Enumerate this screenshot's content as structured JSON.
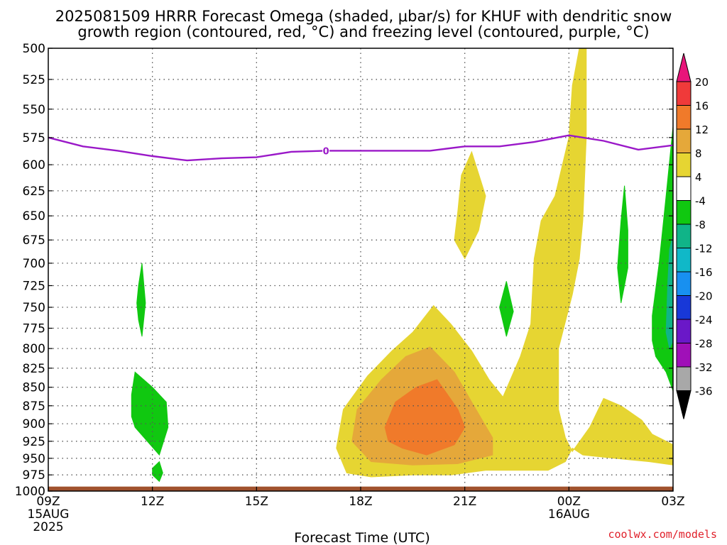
{
  "title_line1": "2025081509 HRRR Forecast Omega (shaded, μbar/s) for KHUF with dendritic snow",
  "title_line2": "growth region (contoured, red, °C) and freezing level (contoured, purple, °C)",
  "x_axis_title": "Forecast Time (UTC)",
  "credit": "coolwx.com/models",
  "chart_data": {
    "type": "heatmap",
    "y_axis": {
      "label": "",
      "range": [
        500,
        1000
      ],
      "inverted": true,
      "ticks": [
        500,
        525,
        550,
        575,
        600,
        625,
        650,
        675,
        700,
        725,
        750,
        775,
        800,
        825,
        850,
        875,
        900,
        925,
        950,
        975,
        1000
      ]
    },
    "x_axis": {
      "range_hours": [
        0,
        18
      ],
      "ticks": [
        {
          "hour": 0,
          "label": "09Z",
          "sub1": "15AUG",
          "sub2": "2025"
        },
        {
          "hour": 3,
          "label": "12Z",
          "sub1": "",
          "sub2": ""
        },
        {
          "hour": 6,
          "label": "15Z",
          "sub1": "",
          "sub2": ""
        },
        {
          "hour": 9,
          "label": "18Z",
          "sub1": "",
          "sub2": ""
        },
        {
          "hour": 12,
          "label": "21Z",
          "sub1": "",
          "sub2": ""
        },
        {
          "hour": 15,
          "label": "00Z",
          "sub1": "16AUG",
          "sub2": ""
        },
        {
          "hour": 18,
          "label": "03Z",
          "sub1": "",
          "sub2": ""
        }
      ]
    },
    "grid": "dotted",
    "colorbar": {
      "labels": [
        "20",
        "16",
        "12",
        "8",
        "4",
        "-4",
        "-8",
        "-12",
        "-16",
        "-20",
        "-24",
        "-28",
        "-32",
        "-36"
      ],
      "colors": [
        "#e8157a",
        "#f03a3a",
        "#f07a2a",
        "#e5a83a",
        "#e6d532",
        "#ffffff",
        "#10c810",
        "#10b488",
        "#10b8c8",
        "#1890f0",
        "#1838d8",
        "#6a18c8",
        "#a010b8",
        "#a8a8a8",
        "#000000"
      ]
    },
    "freezing_level": {
      "label": "0",
      "color": "#9a18c8",
      "points": [
        [
          0,
          575
        ],
        [
          1,
          583
        ],
        [
          2,
          587
        ],
        [
          3,
          592
        ],
        [
          4,
          596
        ],
        [
          5,
          594
        ],
        [
          6,
          593
        ],
        [
          7,
          588
        ],
        [
          8,
          587
        ],
        [
          9,
          587
        ],
        [
          10,
          587
        ],
        [
          11,
          587
        ],
        [
          12,
          583
        ],
        [
          13,
          583
        ],
        [
          14,
          579
        ],
        [
          15,
          573
        ],
        [
          16,
          578
        ],
        [
          17,
          586
        ],
        [
          18,
          582
        ]
      ]
    },
    "omega_regions": [
      {
        "value": 6,
        "color": "#e6d532",
        "points": [
          [
            8.3,
            935
          ],
          [
            8.5,
            880
          ],
          [
            9.2,
            835
          ],
          [
            9.9,
            803
          ],
          [
            10.5,
            780
          ],
          [
            11.1,
            748
          ],
          [
            11.6,
            770
          ],
          [
            12.2,
            803
          ],
          [
            12.7,
            840
          ],
          [
            13.1,
            863
          ],
          [
            13.6,
            810
          ],
          [
            13.9,
            770
          ],
          [
            14.0,
            695
          ],
          [
            14.2,
            655
          ],
          [
            14.6,
            630
          ],
          [
            15.0,
            575
          ],
          [
            15.1,
            530
          ],
          [
            15.3,
            500
          ],
          [
            15.5,
            500
          ],
          [
            15.5,
            575
          ],
          [
            15.4,
            655
          ],
          [
            15.3,
            695
          ],
          [
            15.1,
            735
          ],
          [
            14.7,
            800
          ],
          [
            14.7,
            880
          ],
          [
            14.9,
            920
          ],
          [
            15.1,
            940
          ],
          [
            15.6,
            905
          ],
          [
            16.0,
            865
          ],
          [
            16.5,
            875
          ],
          [
            17.1,
            895
          ],
          [
            17.4,
            915
          ],
          [
            18.0,
            930
          ],
          [
            18.0,
            960
          ],
          [
            17.3,
            955
          ],
          [
            16.3,
            950
          ],
          [
            15.4,
            945
          ],
          [
            15.1,
            935
          ],
          [
            14.9,
            955
          ],
          [
            14.4,
            968
          ],
          [
            13.6,
            968
          ],
          [
            12.6,
            968
          ],
          [
            11.6,
            975
          ],
          [
            10.5,
            975
          ],
          [
            9.3,
            978
          ],
          [
            8.6,
            972
          ]
        ]
      },
      {
        "value": 6,
        "color": "#e6d532",
        "points": [
          [
            11.7,
            675
          ],
          [
            11.8,
            645
          ],
          [
            11.9,
            610
          ],
          [
            12.2,
            588
          ],
          [
            12.6,
            630
          ],
          [
            12.4,
            665
          ],
          [
            12.0,
            695
          ]
        ]
      },
      {
        "value": 10,
        "color": "#e5a83a",
        "points": [
          [
            8.75,
            925
          ],
          [
            8.9,
            880
          ],
          [
            9.6,
            840
          ],
          [
            10.3,
            810
          ],
          [
            11.0,
            798
          ],
          [
            11.7,
            830
          ],
          [
            12.2,
            870
          ],
          [
            12.8,
            920
          ],
          [
            12.8,
            945
          ],
          [
            11.8,
            958
          ],
          [
            10.5,
            960
          ],
          [
            9.3,
            955
          ]
        ]
      },
      {
        "value": 14,
        "color": "#f07a2a",
        "points": [
          [
            9.7,
            905
          ],
          [
            10.0,
            870
          ],
          [
            10.6,
            850
          ],
          [
            11.2,
            840
          ],
          [
            11.8,
            880
          ],
          [
            12.0,
            905
          ],
          [
            11.7,
            930
          ],
          [
            10.9,
            945
          ],
          [
            10.2,
            935
          ],
          [
            9.8,
            925
          ]
        ]
      },
      {
        "value": -6,
        "color": "#10c810",
        "points": [
          [
            2.4,
            860
          ],
          [
            2.5,
            830
          ],
          [
            3.0,
            850
          ],
          [
            3.4,
            870
          ],
          [
            3.45,
            905
          ],
          [
            3.2,
            945
          ],
          [
            2.5,
            905
          ],
          [
            2.4,
            890
          ]
        ]
      },
      {
        "value": -6,
        "color": "#10c810",
        "points": [
          [
            2.55,
            745
          ],
          [
            2.6,
            725
          ],
          [
            2.7,
            700
          ],
          [
            2.8,
            745
          ],
          [
            2.7,
            785
          ],
          [
            2.6,
            765
          ]
        ]
      },
      {
        "value": -6,
        "color": "#10c810",
        "points": [
          [
            3.0,
            965
          ],
          [
            3.2,
            955
          ],
          [
            3.3,
            972
          ],
          [
            3.2,
            985
          ],
          [
            3.0,
            975
          ]
        ]
      },
      {
        "value": -6,
        "color": "#10c810",
        "points": [
          [
            13.0,
            750
          ],
          [
            13.2,
            720
          ],
          [
            13.4,
            755
          ],
          [
            13.2,
            785
          ]
        ]
      },
      {
        "value": -6,
        "color": "#10c810",
        "points": [
          [
            16.4,
            705
          ],
          [
            16.5,
            655
          ],
          [
            16.6,
            620
          ],
          [
            16.7,
            665
          ],
          [
            16.7,
            705
          ],
          [
            16.6,
            725
          ],
          [
            16.5,
            745
          ]
        ]
      },
      {
        "value": -6,
        "color": "#10c810",
        "points": [
          [
            17.4,
            760
          ],
          [
            17.6,
            700
          ],
          [
            17.8,
            630
          ],
          [
            18.0,
            565
          ],
          [
            18.0,
            855
          ],
          [
            17.8,
            830
          ],
          [
            17.5,
            810
          ],
          [
            17.4,
            790
          ]
        ]
      },
      {
        "value": -10,
        "color": "#10b488",
        "points": [
          [
            17.8,
            780
          ],
          [
            17.85,
            720
          ],
          [
            17.9,
            685
          ],
          [
            18.0,
            670
          ],
          [
            18.0,
            790
          ],
          [
            17.9,
            800
          ]
        ]
      }
    ],
    "ground_level_hpa": 993
  }
}
